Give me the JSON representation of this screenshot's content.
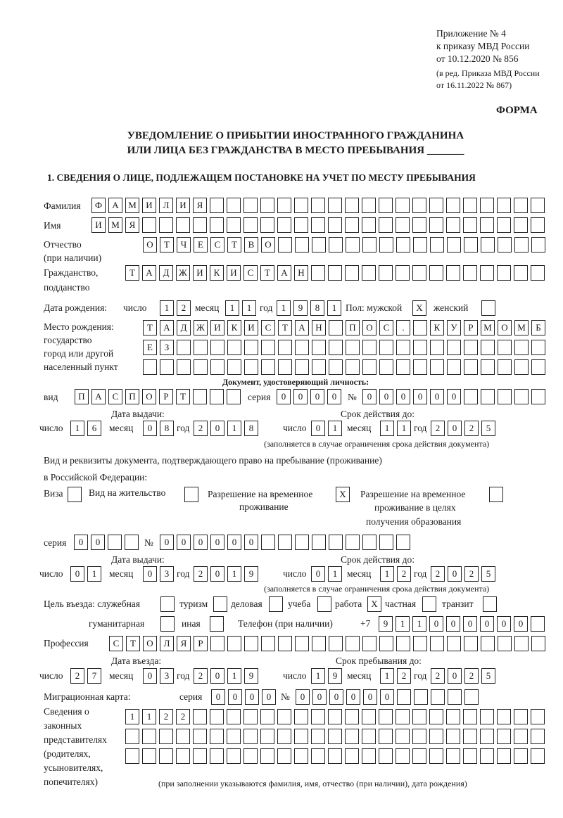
{
  "header": {
    "annex": "Приложение № 4",
    "order": "к приказу МВД России",
    "date": "от 10.12.2020 № 856",
    "revision1": "(в ред. Приказа МВД России",
    "revision2": "от 16.11.2022 № 867)",
    "form_label": "ФОРМА",
    "title1": "УВЕДОМЛЕНИЕ О ПРИБЫТИИ ИНОСТРАННОГО ГРАЖДАНИНА",
    "title2": "ИЛИ ЛИЦА БЕЗ ГРАЖДАНСТВА В МЕСТО ПРЕБЫВАНИЯ _______",
    "section1": "1. СВЕДЕНИЯ О ЛИЦЕ, ПОДЛЕЖАЩЕМ ПОСТАНОВКЕ НА УЧЕТ ПО МЕСТУ ПРЕБЫВАНИЯ"
  },
  "labels": {
    "surname": "Фамилия",
    "name": "Имя",
    "patronymic1": "Отчество",
    "patronymic2": "(при наличии)",
    "citizenship1": "Гражданство,",
    "citizenship2": "подданство",
    "birth_date": "Дата рождения:",
    "day": "число",
    "month": "месяц",
    "year": "год",
    "sex": "Пол: мужской",
    "female": "женский",
    "birth_place1": "Место рождения:",
    "birth_place2": "государство",
    "birth_place3": "город или другой",
    "birth_place4": "населенный пункт",
    "id_doc": "Документ, удостоверяющий личность:",
    "kind": "вид",
    "series": "серия",
    "number": "№",
    "issue_date": "Дата выдачи:",
    "valid_until": "Срок действия до:",
    "validity_note": "(заполняется в случае ограничения срока действия документа)",
    "residence_doc1": "Вид и реквизиты документа, подтверждающего право на пребывание (проживание)",
    "residence_doc2": "в Российской Федерации:",
    "visa": "Виза",
    "residence_permit": "Вид на жительство",
    "temp_permit1": "Разрешение на временное",
    "temp_permit2": "проживание",
    "edu_permit1": "Разрешение на временное",
    "edu_permit2": "проживание в целях",
    "edu_permit3": "получения образования",
    "purpose": "Цель въезда: служебная",
    "tourism": "туризм",
    "business": "деловая",
    "study": "учеба",
    "work": "работа",
    "private": "частная",
    "transit": "транзит",
    "humanitarian": "гуманитарная",
    "other": "иная",
    "phone": "Телефон (при наличии)",
    "phone_prefix": "+7",
    "profession": "Профессия",
    "entry_date": "Дата въезда:",
    "stay_until": "Срок пребывания до:",
    "migration_card": "Миграционная карта:",
    "legal_rep1": "Сведения о",
    "legal_rep2": "законных",
    "legal_rep3": "представителях",
    "legal_rep4": "(родителях,",
    "legal_rep5": "усыновителях,",
    "legal_rep6": "попечителях)",
    "legal_rep_note": "(при заполнении указываются фамилия, имя, отчество (при наличии), дата рождения)"
  },
  "values": {
    "surname": "ФАМИЛИЯ",
    "name": "ИМЯ",
    "patronymic": "ОТЧЕСТВО",
    "citizenship": "ТАДЖИКИСТАН",
    "birth_day": "12",
    "birth_month": "11",
    "birth_year": "1981",
    "male": "X",
    "female": "",
    "birth_place_row1": "ТАДЖИКИСТАН ПОС. КУРМОМБ",
    "birth_place_row2": "ЕЗ",
    "birth_place_row3": "",
    "id_kind": "ПАСПОРТ",
    "id_series": "0000",
    "id_number": "000000",
    "id_issue_day": "16",
    "id_issue_month": "08",
    "id_issue_year": "2018",
    "id_valid_day": "01",
    "id_valid_month": "11",
    "id_valid_year": "2025",
    "visa": "",
    "residence_permit": "",
    "temp_permit": "X",
    "edu_permit": "",
    "res_series": "00",
    "res_number": "000000",
    "res_issue_day": "01",
    "res_issue_month": "03",
    "res_issue_year": "2019",
    "res_valid_day": "01",
    "res_valid_month": "12",
    "res_valid_year": "2025",
    "purpose_official": "",
    "purpose_tourism": "",
    "purpose_business": "",
    "purpose_study": "",
    "purpose_work": "X",
    "purpose_private": "",
    "purpose_transit": "",
    "purpose_humanitarian": "",
    "purpose_other": "",
    "phone": "911000000",
    "profession": "СТОЛЯР",
    "entry_day": "27",
    "entry_month": "03",
    "entry_year": "2019",
    "stay_day": "19",
    "stay_month": "12",
    "stay_year": "2025",
    "mc_series": "0000",
    "mc_number": "000000",
    "legal_rep_row1": "1122",
    "legal_rep_row2": "",
    "legal_rep_row3": ""
  }
}
